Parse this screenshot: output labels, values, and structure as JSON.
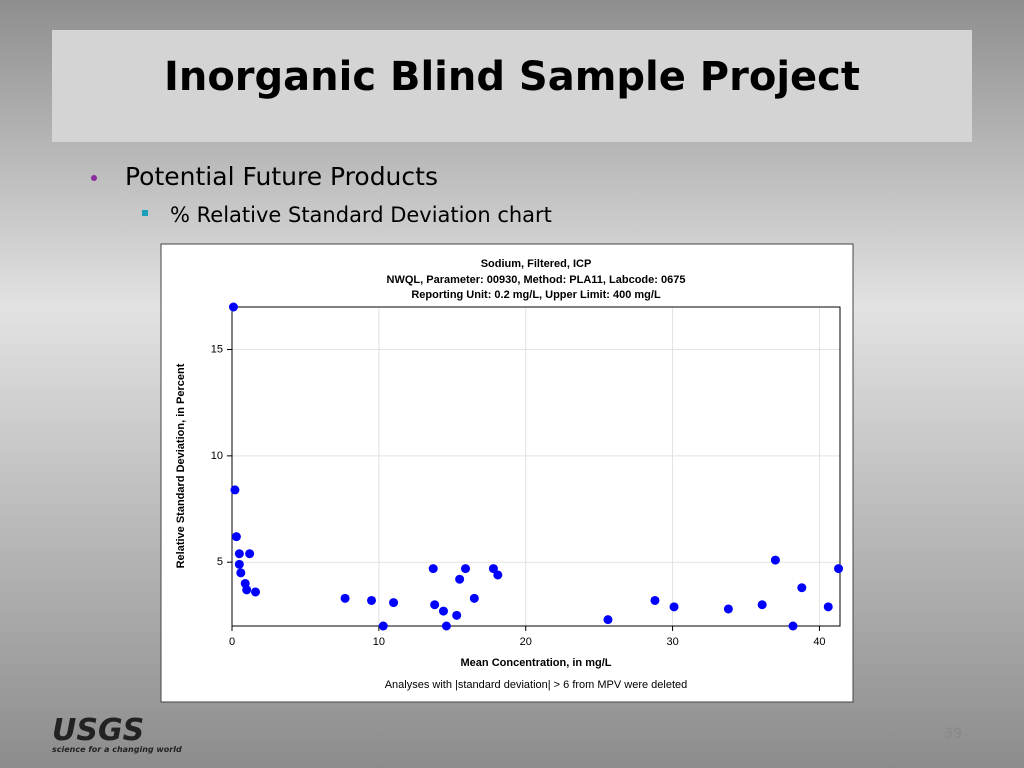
{
  "slide": {
    "title": "Inorganic Blind Sample Project",
    "bullets": [
      "Potential Future Products"
    ],
    "sub_bullets": [
      "% Relative Standard Deviation chart"
    ],
    "logo": "USGS",
    "logo_tagline": "science for a changing world",
    "page_number": "39"
  },
  "chart_data": {
    "type": "scatter",
    "title": "Sodium, Filtered, ICP",
    "subtitle": [
      "NWQL, Parameter: 00930, Method: PLA11, Labcode: 0675",
      "Reporting Unit: 0.2 mg/L, Upper Limit: 400 mg/L"
    ],
    "xlabel": "Mean Concentration, in mg/L",
    "ylabel": "Relative Standard Deviation, in Percent",
    "note": "Analyses with |standard deviation| > 6 from MPV were deleted",
    "xlim": [
      0,
      41.4
    ],
    "ylim": [
      2,
      17
    ],
    "xticks": [
      0,
      10,
      20,
      30,
      40
    ],
    "yticks": [
      5,
      10,
      15
    ],
    "grid": true,
    "series": [
      {
        "color": "#0000ff",
        "x": [
          0.1,
          0.2,
          0.3,
          0.5,
          1.2,
          0.5,
          0.6,
          0.9,
          1.0,
          1.6,
          7.7,
          9.5,
          10.3,
          11.0,
          13.7,
          13.8,
          14.4,
          14.6,
          15.3,
          15.5,
          15.9,
          16.5,
          17.8,
          18.1,
          25.6,
          28.8,
          30.1,
          33.8,
          36.1,
          37.0,
          38.2,
          38.8,
          40.6,
          41.3
        ],
        "values": [
          17.0,
          8.4,
          6.2,
          5.4,
          5.4,
          4.9,
          4.5,
          4.0,
          3.7,
          3.6,
          3.3,
          3.2,
          2.0,
          3.1,
          4.7,
          3.0,
          2.7,
          2.0,
          2.5,
          4.2,
          4.7,
          3.3,
          4.7,
          4.4,
          2.3,
          3.2,
          2.9,
          2.8,
          3.0,
          5.1,
          2.0,
          3.8,
          2.9,
          4.7
        ]
      }
    ]
  }
}
